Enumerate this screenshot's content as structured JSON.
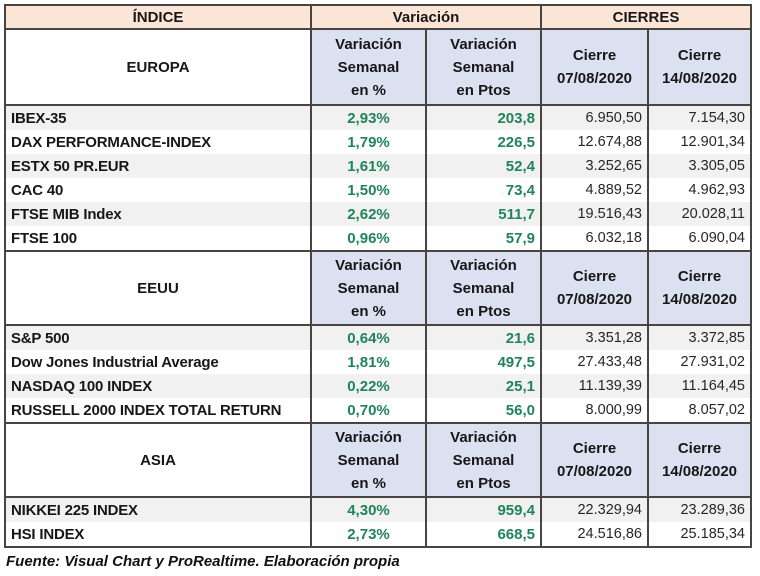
{
  "colors": {
    "header_fill": "#FBE5D6",
    "subheader_fill": "#DBE1F1",
    "row_alt_fill": "#F1F1F1",
    "positive_value_green": "#21835A",
    "border": "#474442"
  },
  "chart_data": {
    "type": "table",
    "headers": {
      "indice": "ÍNDICE",
      "variacion": "Variación",
      "cierres": "CIERRES"
    },
    "subheaders": {
      "var_pct": "Variación\nSemanal\nen %",
      "var_pts": "Variación\nSemanal\nen Ptos",
      "close_prev": "Cierre\n07/08/2020",
      "close_last": "Cierre\n14/08/2020"
    },
    "sections": [
      {
        "region": "EUROPA",
        "rows": [
          {
            "name": "IBEX-35",
            "var_pct": "2,93%",
            "var_pts": "203,8",
            "close_prev": "6.950,50",
            "close_last": "7.154,30"
          },
          {
            "name": "DAX PERFORMANCE-INDEX",
            "var_pct": "1,79%",
            "var_pts": "226,5",
            "close_prev": "12.674,88",
            "close_last": "12.901,34"
          },
          {
            "name": "ESTX 50 PR.EUR",
            "var_pct": "1,61%",
            "var_pts": "52,4",
            "close_prev": "3.252,65",
            "close_last": "3.305,05"
          },
          {
            "name": "CAC 40",
            "var_pct": "1,50%",
            "var_pts": "73,4",
            "close_prev": "4.889,52",
            "close_last": "4.962,93"
          },
          {
            "name": "FTSE MIB Index",
            "var_pct": "2,62%",
            "var_pts": "511,7",
            "close_prev": "19.516,43",
            "close_last": "20.028,11"
          },
          {
            "name": "FTSE 100",
            "var_pct": "0,96%",
            "var_pts": "57,9",
            "close_prev": "6.032,18",
            "close_last": "6.090,04"
          }
        ]
      },
      {
        "region": "EEUU",
        "rows": [
          {
            "name": "S&P 500",
            "var_pct": "0,64%",
            "var_pts": "21,6",
            "close_prev": "3.351,28",
            "close_last": "3.372,85"
          },
          {
            "name": "Dow Jones Industrial Average",
            "var_pct": "1,81%",
            "var_pts": "497,5",
            "close_prev": "27.433,48",
            "close_last": "27.931,02"
          },
          {
            "name": "NASDAQ 100 INDEX",
            "var_pct": "0,22%",
            "var_pts": "25,1",
            "close_prev": "11.139,39",
            "close_last": "11.164,45"
          },
          {
            "name": "RUSSELL 2000 INDEX TOTAL RETURN",
            "var_pct": "0,70%",
            "var_pts": "56,0",
            "close_prev": "8.000,99",
            "close_last": "8.057,02"
          }
        ]
      },
      {
        "region": "ASIA",
        "rows": [
          {
            "name": "NIKKEI 225 INDEX",
            "var_pct": "4,30%",
            "var_pts": "959,4",
            "close_prev": "22.329,94",
            "close_last": "23.289,36"
          },
          {
            "name": "HSI INDEX",
            "var_pct": "2,73%",
            "var_pts": "668,5",
            "close_prev": "24.516,86",
            "close_last": "25.185,34"
          }
        ]
      }
    ],
    "source_note": "Fuente: Visual Chart y ProRealtime. Elaboración propia"
  }
}
